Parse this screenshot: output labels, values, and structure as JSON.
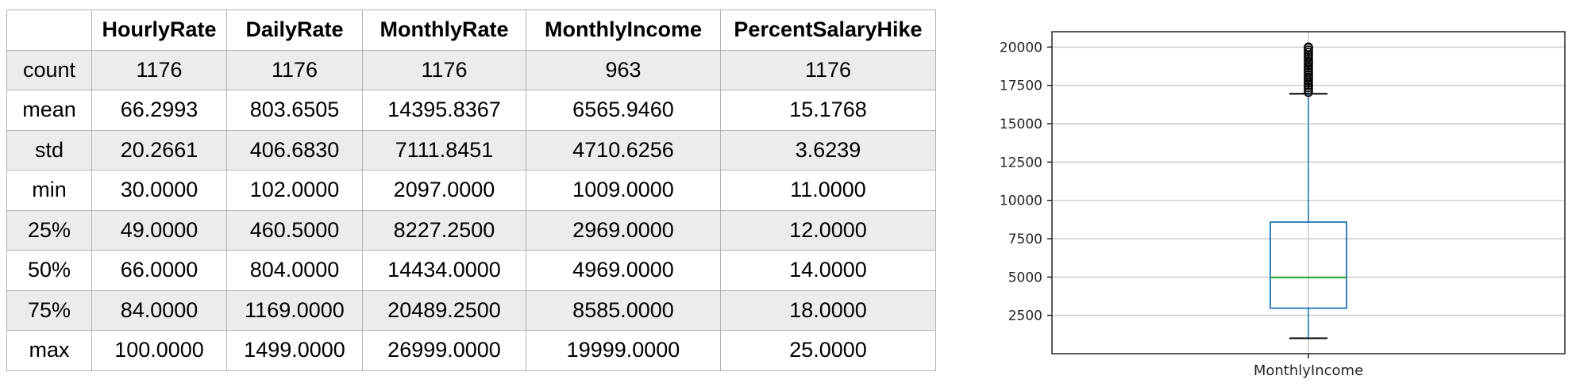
{
  "stats_table": {
    "corner": "",
    "columns": [
      "HourlyRate",
      "DailyRate",
      "MonthlyRate",
      "MonthlyIncome",
      "PercentSalaryHike"
    ],
    "rows": [
      {
        "label": "count",
        "values": [
          "1176",
          "1176",
          "1176",
          "963",
          "1176"
        ]
      },
      {
        "label": "mean",
        "values": [
          "66.2993",
          "803.6505",
          "14395.8367",
          "6565.9460",
          "15.1768"
        ]
      },
      {
        "label": "std",
        "values": [
          "20.2661",
          "406.6830",
          "7111.8451",
          "4710.6256",
          "3.6239"
        ]
      },
      {
        "label": "min",
        "values": [
          "30.0000",
          "102.0000",
          "2097.0000",
          "1009.0000",
          "11.0000"
        ]
      },
      {
        "label": "25%",
        "values": [
          "49.0000",
          "460.5000",
          "8227.2500",
          "2969.0000",
          "12.0000"
        ]
      },
      {
        "label": "50%",
        "values": [
          "66.0000",
          "804.0000",
          "14434.0000",
          "4969.0000",
          "14.0000"
        ]
      },
      {
        "label": "75%",
        "values": [
          "84.0000",
          "1169.0000",
          "20489.2500",
          "8585.0000",
          "18.0000"
        ]
      },
      {
        "label": "max",
        "values": [
          "100.0000",
          "1499.0000",
          "26999.0000",
          "19999.0000",
          "25.0000"
        ]
      }
    ]
  },
  "chart_data": {
    "type": "box",
    "title": "",
    "xlabel": "",
    "ylabel": "",
    "categories": [
      "MonthlyIncome"
    ],
    "ylim": [
      0,
      21000
    ],
    "y_ticks": [
      2500,
      5000,
      7500,
      10000,
      12500,
      15000,
      17500,
      20000
    ],
    "grid": true,
    "box": {
      "whisker_low": 1009,
      "q1": 2969,
      "median": 4969,
      "q3": 8585,
      "whisker_high": 16950
    },
    "outliers": [
      17050,
      17200,
      17350,
      17500,
      17650,
      17800,
      17950,
      18050,
      18200,
      18350,
      18500,
      18650,
      18800,
      18950,
      19050,
      19200,
      19350,
      19500,
      19650,
      19800,
      19950,
      19999
    ],
    "colors": {
      "box": "#1f77b4",
      "median": "#2ca02c",
      "outlier": "#000000",
      "grid": "#cccccc",
      "axis": "#262626"
    }
  }
}
